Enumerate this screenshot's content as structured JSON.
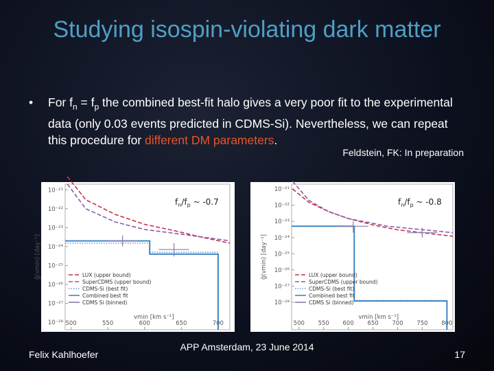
{
  "title": "Studying isospin-violating dark matter",
  "bullet": [
    {
      "text": "For f"
    },
    {
      "text": "n",
      "style": "sub"
    },
    {
      "text": " = f"
    },
    {
      "text": "p",
      "style": "sub"
    },
    {
      "text": " the combined best-fit halo gives a very poor fit to the experimental data (only 0.03 events predicted in CDMS-Si). Nevertheless, we can repeat this procedure for "
    },
    {
      "text": "different DM parameters",
      "style": "highlight"
    },
    {
      "text": "."
    }
  ],
  "citation": "Feldstein, FK: In preparation",
  "footer": {
    "author": "Felix Kahlhoefer",
    "event": "APP Amsterdam, 23 June 2014",
    "page": "17"
  },
  "chart_data": [
    {
      "type": "line",
      "annotation": [
        {
          "text": "f"
        },
        {
          "text": "n",
          "style": "sub"
        },
        {
          "text": "/f"
        },
        {
          "text": "p",
          "style": "sub"
        },
        {
          "text": " ~ -0.7"
        }
      ],
      "x_label": "vmin [km s⁻¹]",
      "y_label": "g̃(vmin) [day⁻¹]",
      "xlim": [
        492,
        716
      ],
      "xticks": [
        500,
        550,
        600,
        650,
        700
      ],
      "ylim": [
        4e-29,
        2e-21
      ],
      "log_y": true,
      "yticks": [
        {
          "value": 1e-21,
          "label": "10⁻²¹"
        },
        {
          "value": 1e-22,
          "label": "10⁻²²"
        },
        {
          "value": 1e-23,
          "label": "10⁻²³"
        },
        {
          "value": 1e-24,
          "label": "10⁻²⁴"
        },
        {
          "value": 1e-25,
          "label": "10⁻²⁵"
        },
        {
          "value": 1e-26,
          "label": "10⁻²⁶"
        },
        {
          "value": 1e-27,
          "label": "10⁻²⁷"
        },
        {
          "value": 1e-28,
          "label": "10⁻²⁸"
        }
      ],
      "legend": "lower left",
      "series": [
        {
          "name": "LUX (upper bound)",
          "color": "#c8304a",
          "style": "dashed",
          "x": [
            495,
            520,
            560,
            600,
            640,
            680,
            716
          ],
          "values": [
            5e-21,
            3e-22,
            5e-23,
            1.5e-23,
            7e-24,
            3e-24,
            1.5e-24
          ]
        },
        {
          "name": "SuperCDMS (upper bound)",
          "color": "#8a5aa8",
          "style": "dashed",
          "x": [
            495,
            520,
            560,
            600,
            660,
            716
          ],
          "values": [
            2e-21,
            1e-22,
            2e-23,
            8e-24,
            4e-24,
            2e-24
          ]
        },
        {
          "name": "CDMS-Si (best fit)",
          "color": "#6a9ad8",
          "style": "dotted",
          "x": [
            492,
            607,
            607,
            700,
            700
          ],
          "values": [
            1.5e-24,
            1.5e-24,
            5e-25,
            5e-25,
            4e-29
          ]
        },
        {
          "name": "Combined best fit",
          "color": "#3f86c4",
          "style": "solid",
          "x": [
            492,
            607,
            607,
            700,
            700
          ],
          "values": [
            2e-24,
            2e-24,
            4e-25,
            4e-25,
            4e-29
          ]
        },
        {
          "name": "CDMS Si (binned)",
          "color": "#8a7aa8",
          "style": "errorbar",
          "x": [
            570,
            640
          ],
          "values": [
            2e-24,
            7e-25
          ],
          "lower": [
            1e-24,
            3e-25
          ],
          "upper": [
            4e-24,
            1.5e-24
          ]
        }
      ]
    },
    {
      "type": "line",
      "annotation": [
        {
          "text": "f"
        },
        {
          "text": "n",
          "style": "sub"
        },
        {
          "text": "/f"
        },
        {
          "text": "p",
          "style": "sub"
        },
        {
          "text": " ~ -0.8"
        }
      ],
      "x_label": "vmin [km s⁻¹]",
      "y_label": "g̃(vmin) [day⁻¹]",
      "xlim": [
        485,
        812
      ],
      "xticks": [
        500,
        550,
        600,
        650,
        700,
        750,
        800
      ],
      "ylim": [
        2e-30,
        2e-21
      ],
      "log_y": true,
      "yticks": [
        {
          "value": 1e-21,
          "label": "10⁻²¹"
        },
        {
          "value": 1e-22,
          "label": "10⁻²²"
        },
        {
          "value": 1e-23,
          "label": "10⁻²³"
        },
        {
          "value": 1e-24,
          "label": "10⁻²⁴"
        },
        {
          "value": 1e-25,
          "label": "10⁻²⁵"
        },
        {
          "value": 1e-26,
          "label": "10⁻²⁶"
        },
        {
          "value": 1e-27,
          "label": "10⁻²⁷"
        },
        {
          "value": 1e-28,
          "label": "10⁻²⁸"
        }
      ],
      "legend": "lower left",
      "series": [
        {
          "name": "LUX (upper bound)",
          "color": "#c8304a",
          "style": "dashed",
          "x": [
            487,
            520,
            560,
            600,
            650,
            700,
            750,
            812
          ],
          "values": [
            1e-21,
            1.5e-22,
            4e-23,
            1.5e-23,
            6e-24,
            3e-24,
            2e-24,
            1.2e-24
          ]
        },
        {
          "name": "SuperCDMS (upper bound)",
          "color": "#8a5aa8",
          "style": "dashed",
          "x": [
            487,
            520,
            560,
            600,
            680,
            812
          ],
          "values": [
            3e-21,
            2e-22,
            4e-23,
            1.5e-23,
            5e-24,
            2e-24
          ]
        },
        {
          "name": "CDMS-Si (best fit)",
          "color": "#6a9ad8",
          "style": "dotted",
          "x": [
            485,
            612,
            612,
            800,
            800
          ],
          "values": [
            5e-24,
            5e-24,
            1.3e-28,
            1.3e-28,
            2e-30
          ]
        },
        {
          "name": "Combined best fit",
          "color": "#3f86c4",
          "style": "solid",
          "x": [
            485,
            612,
            612,
            800,
            800
          ],
          "values": [
            5e-24,
            5e-24,
            1.2e-28,
            1.2e-28,
            2e-30
          ]
        },
        {
          "name": "CDMS Si (binned)",
          "color": "#8a7aa8",
          "style": "errorbar",
          "x": [
            610,
            750
          ],
          "values": [
            5e-24,
            2e-24
          ],
          "lower": [
            2e-24,
            1e-24
          ],
          "upper": [
            1e-23,
            4e-24
          ]
        }
      ]
    }
  ]
}
